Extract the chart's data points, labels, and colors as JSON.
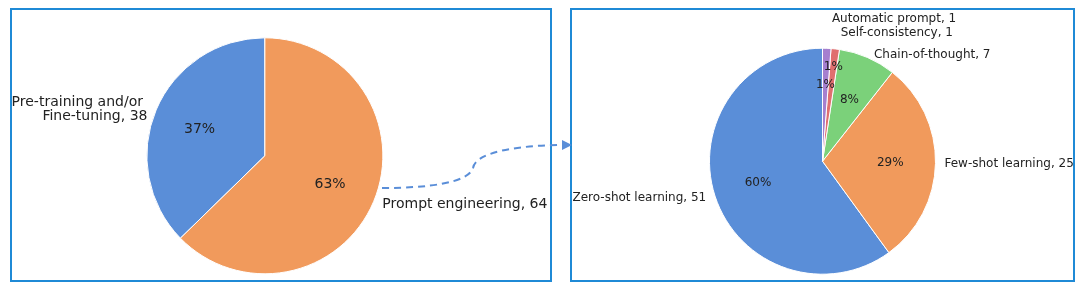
{
  "chart_data": [
    {
      "type": "pie",
      "categories": [
        "Pre-training and/or Fine-tuning, 38",
        "Prompt engineering, 64"
      ],
      "values": [
        37.3,
        62.7
      ],
      "colors": [
        "#5a8ed8",
        "#f19a5c"
      ],
      "value_labels": [
        "37%",
        "63%"
      ]
    },
    {
      "type": "pie",
      "categories": [
        "Zero-shot learning, 51",
        "Few-shot learning, 25",
        "Chain-of-thought, 7",
        "Self-consistency, 1",
        "Automatic prompt, 1"
      ],
      "values": [
        60,
        29.4,
        8.2,
        1.2,
        1.2
      ],
      "colors": [
        "#5a8ed8",
        "#f19a5c",
        "#7bd17a",
        "#e06f6f",
        "#a57fcf"
      ],
      "value_labels": [
        "60%",
        "29%",
        "8%",
        "1%",
        "1%"
      ]
    }
  ]
}
